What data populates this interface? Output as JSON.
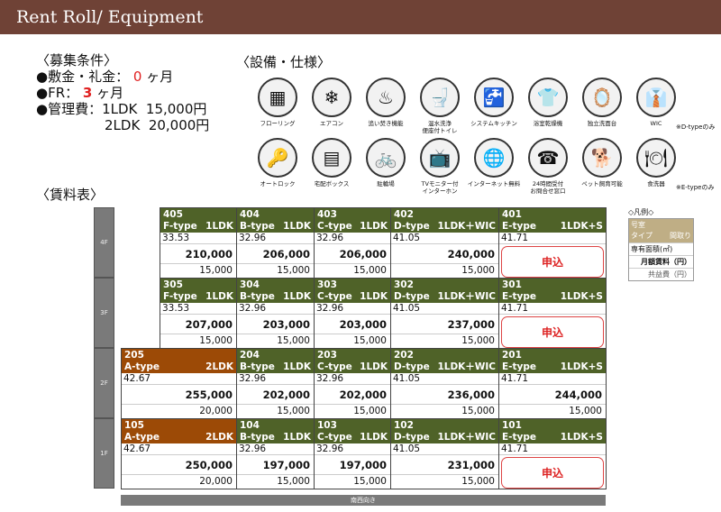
{
  "title": "Rent Roll/ Equipment",
  "conditions": {
    "heading": "〈募集条件〉",
    "deposit_label": "●敷金・礼金：",
    "deposit_value": "0",
    "deposit_unit": "ヶ月",
    "fr_label": "●FR：",
    "fr_value": "3",
    "fr_unit": "ヶ月",
    "mgmt_label": "●管理費：1LDK  15,000円",
    "mgmt_line2": "2LDK  20,000円"
  },
  "equipment_heading": "〈設備・仕様〉",
  "rent_heading": "〈賃料表〉",
  "equipment": [
    {
      "icon": "flooring-icon",
      "glyph": "▦",
      "label": "フローリング"
    },
    {
      "icon": "air-conditioner-icon",
      "glyph": "❄",
      "label": "エアコン"
    },
    {
      "icon": "bath-reheat-icon",
      "glyph": "♨",
      "label": "追い焚き機能"
    },
    {
      "icon": "washlet-toilet-icon",
      "glyph": "🚽",
      "label": "温水洗浄\n便座付トイレ"
    },
    {
      "icon": "system-kitchen-icon",
      "glyph": "🚰",
      "label": "システムキッチン"
    },
    {
      "icon": "bathroom-dryer-icon",
      "glyph": "👕",
      "label": "浴室乾燥機"
    },
    {
      "icon": "vanity-icon",
      "glyph": "🪞",
      "label": "独立洗面台"
    },
    {
      "icon": "wic-icon",
      "glyph": "👔",
      "label": "WIC",
      "note": "※D-typeのみ"
    },
    {
      "icon": "auto-lock-icon",
      "glyph": "🔑",
      "label": "オートロック"
    },
    {
      "icon": "delivery-box-icon",
      "glyph": "▤",
      "label": "宅配ボックス"
    },
    {
      "icon": "bicycle-parking-icon",
      "glyph": "🚲",
      "label": "駐輪場"
    },
    {
      "icon": "tv-intercom-icon",
      "glyph": "📺",
      "label": "TVモニター付\nインターホン"
    },
    {
      "icon": "free-internet-icon",
      "glyph": "🌐",
      "label": "インターネット無料"
    },
    {
      "icon": "c-desk-icon",
      "glyph": "☎",
      "label": "24時間受付\nお問合せ窓口"
    },
    {
      "icon": "pet-icon",
      "glyph": "🐕",
      "label": "ペット飼育可能"
    },
    {
      "icon": "dishwasher-icon",
      "glyph": "🍽",
      "label": "食洗器",
      "note": "※E-typeのみ"
    }
  ],
  "floors": [
    {
      "label": "4F",
      "units": [
        {
          "no": "405",
          "type": "F-type",
          "layout": "1LDK",
          "area": "33.53",
          "rent": "210,000",
          "common": "15,000"
        },
        {
          "no": "404",
          "type": "B-type",
          "layout": "1LDK",
          "area": "32.96",
          "rent": "206,000",
          "common": "15,000"
        },
        {
          "no": "403",
          "type": "C-type",
          "layout": "1LDK",
          "area": "32.96",
          "rent": "206,000",
          "common": "15,000"
        },
        {
          "no": "402",
          "type": "D-type",
          "layout": "1LDK＋WIC",
          "area": "41.05",
          "rent": "240,000",
          "common": "15,000"
        },
        {
          "no": "401",
          "type": "E-type",
          "layout": "1LDK+S",
          "area": "41.71",
          "apply": "申込"
        }
      ]
    },
    {
      "label": "3F",
      "units": [
        {
          "no": "305",
          "type": "F-type",
          "layout": "1LDK",
          "area": "33.53",
          "rent": "207,000",
          "common": "15,000"
        },
        {
          "no": "304",
          "type": "B-type",
          "layout": "1LDK",
          "area": "32.96",
          "rent": "203,000",
          "common": "15,000"
        },
        {
          "no": "303",
          "type": "C-type",
          "layout": "1LDK",
          "area": "32.96",
          "rent": "203,000",
          "common": "15,000"
        },
        {
          "no": "302",
          "type": "D-type",
          "layout": "1LDK＋WIC",
          "area": "41.05",
          "rent": "237,000",
          "common": "15,000"
        },
        {
          "no": "301",
          "type": "E-type",
          "layout": "1LDK+S",
          "area": "41.71",
          "apply": "申込"
        }
      ]
    },
    {
      "label": "2F",
      "units": [
        {
          "no": "205",
          "type": "A-type",
          "layout": "2LDK",
          "area": "42.67",
          "rent": "255,000",
          "common": "20,000",
          "highlight": true
        },
        {
          "no": "204",
          "type": "B-type",
          "layout": "1LDK",
          "area": "32.96",
          "rent": "202,000",
          "common": "15,000"
        },
        {
          "no": "203",
          "type": "C-type",
          "layout": "1LDK",
          "area": "32.96",
          "rent": "202,000",
          "common": "15,000"
        },
        {
          "no": "202",
          "type": "D-type",
          "layout": "1LDK＋WIC",
          "area": "41.05",
          "rent": "236,000",
          "common": "15,000"
        },
        {
          "no": "201",
          "type": "E-type",
          "layout": "1LDK+S",
          "area": "41.71",
          "rent": "244,000",
          "common": "15,000"
        }
      ]
    },
    {
      "label": "1F",
      "units": [
        {
          "no": "105",
          "type": "A-type",
          "layout": "2LDK",
          "area": "42.67",
          "rent": "250,000",
          "common": "20,000",
          "highlight": true
        },
        {
          "no": "104",
          "type": "B-type",
          "layout": "1LDK",
          "area": "32.96",
          "rent": "197,000",
          "common": "15,000"
        },
        {
          "no": "103",
          "type": "C-type",
          "layout": "1LDK",
          "area": "32.96",
          "rent": "197,000",
          "common": "15,000"
        },
        {
          "no": "102",
          "type": "D-type",
          "layout": "1LDK＋WIC",
          "area": "41.05",
          "rent": "231,000",
          "common": "15,000"
        },
        {
          "no": "101",
          "type": "E-type",
          "layout": "1LDK+S",
          "area": "41.71",
          "apply": "申込"
        }
      ]
    }
  ],
  "orientation": "南西向き",
  "legend": {
    "title": "◇凡例◇",
    "room": "号室",
    "type": "タイプ",
    "layout": "間取り",
    "area": "専有面積(㎡)",
    "rent": "月額賃料（円）",
    "common": "共益費（円）"
  },
  "colors": {
    "title_bar": "#6f4236",
    "unit_header": "#4f6228",
    "unit_header_2ldk": "#9c4a06",
    "apply": "#d22222"
  }
}
